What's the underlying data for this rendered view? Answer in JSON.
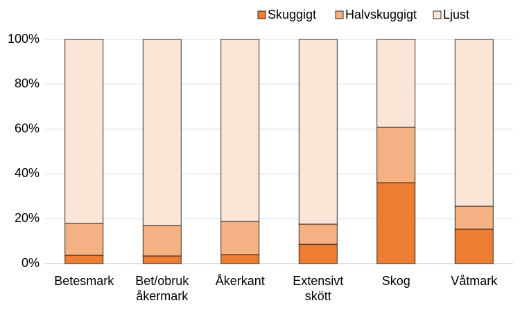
{
  "chart_data": {
    "type": "stacked_bar",
    "categories": [
      "Betesmark",
      "Bet/obruk\nåkermark",
      "Åkerkant",
      "Extensivt\nskött",
      "Skog",
      "Våtmark"
    ],
    "series": [
      {
        "name": "Skuggigt",
        "color": "#ed7d31",
        "values": [
          3.7,
          3.4,
          4.0,
          8.6,
          36.1,
          15.4
        ]
      },
      {
        "name": "Halvskuggigt",
        "color": "#f4b183",
        "values": [
          14.2,
          13.6,
          14.8,
          9.0,
          24.7,
          10.2
        ]
      },
      {
        "name": "Ljust",
        "color": "#fbe5d6",
        "values": [
          82.1,
          83.0,
          81.2,
          82.4,
          39.2,
          74.4
        ]
      }
    ],
    "ylim": [
      0,
      100
    ],
    "yticks": [
      {
        "value": 0,
        "label": "0%"
      },
      {
        "value": 20,
        "label": "20%"
      },
      {
        "value": 40,
        "label": "40%"
      },
      {
        "value": 60,
        "label": "60%"
      },
      {
        "value": 80,
        "label": "80%"
      },
      {
        "value": 100,
        "label": "100%"
      }
    ],
    "grid": true,
    "legend": "top-right"
  }
}
